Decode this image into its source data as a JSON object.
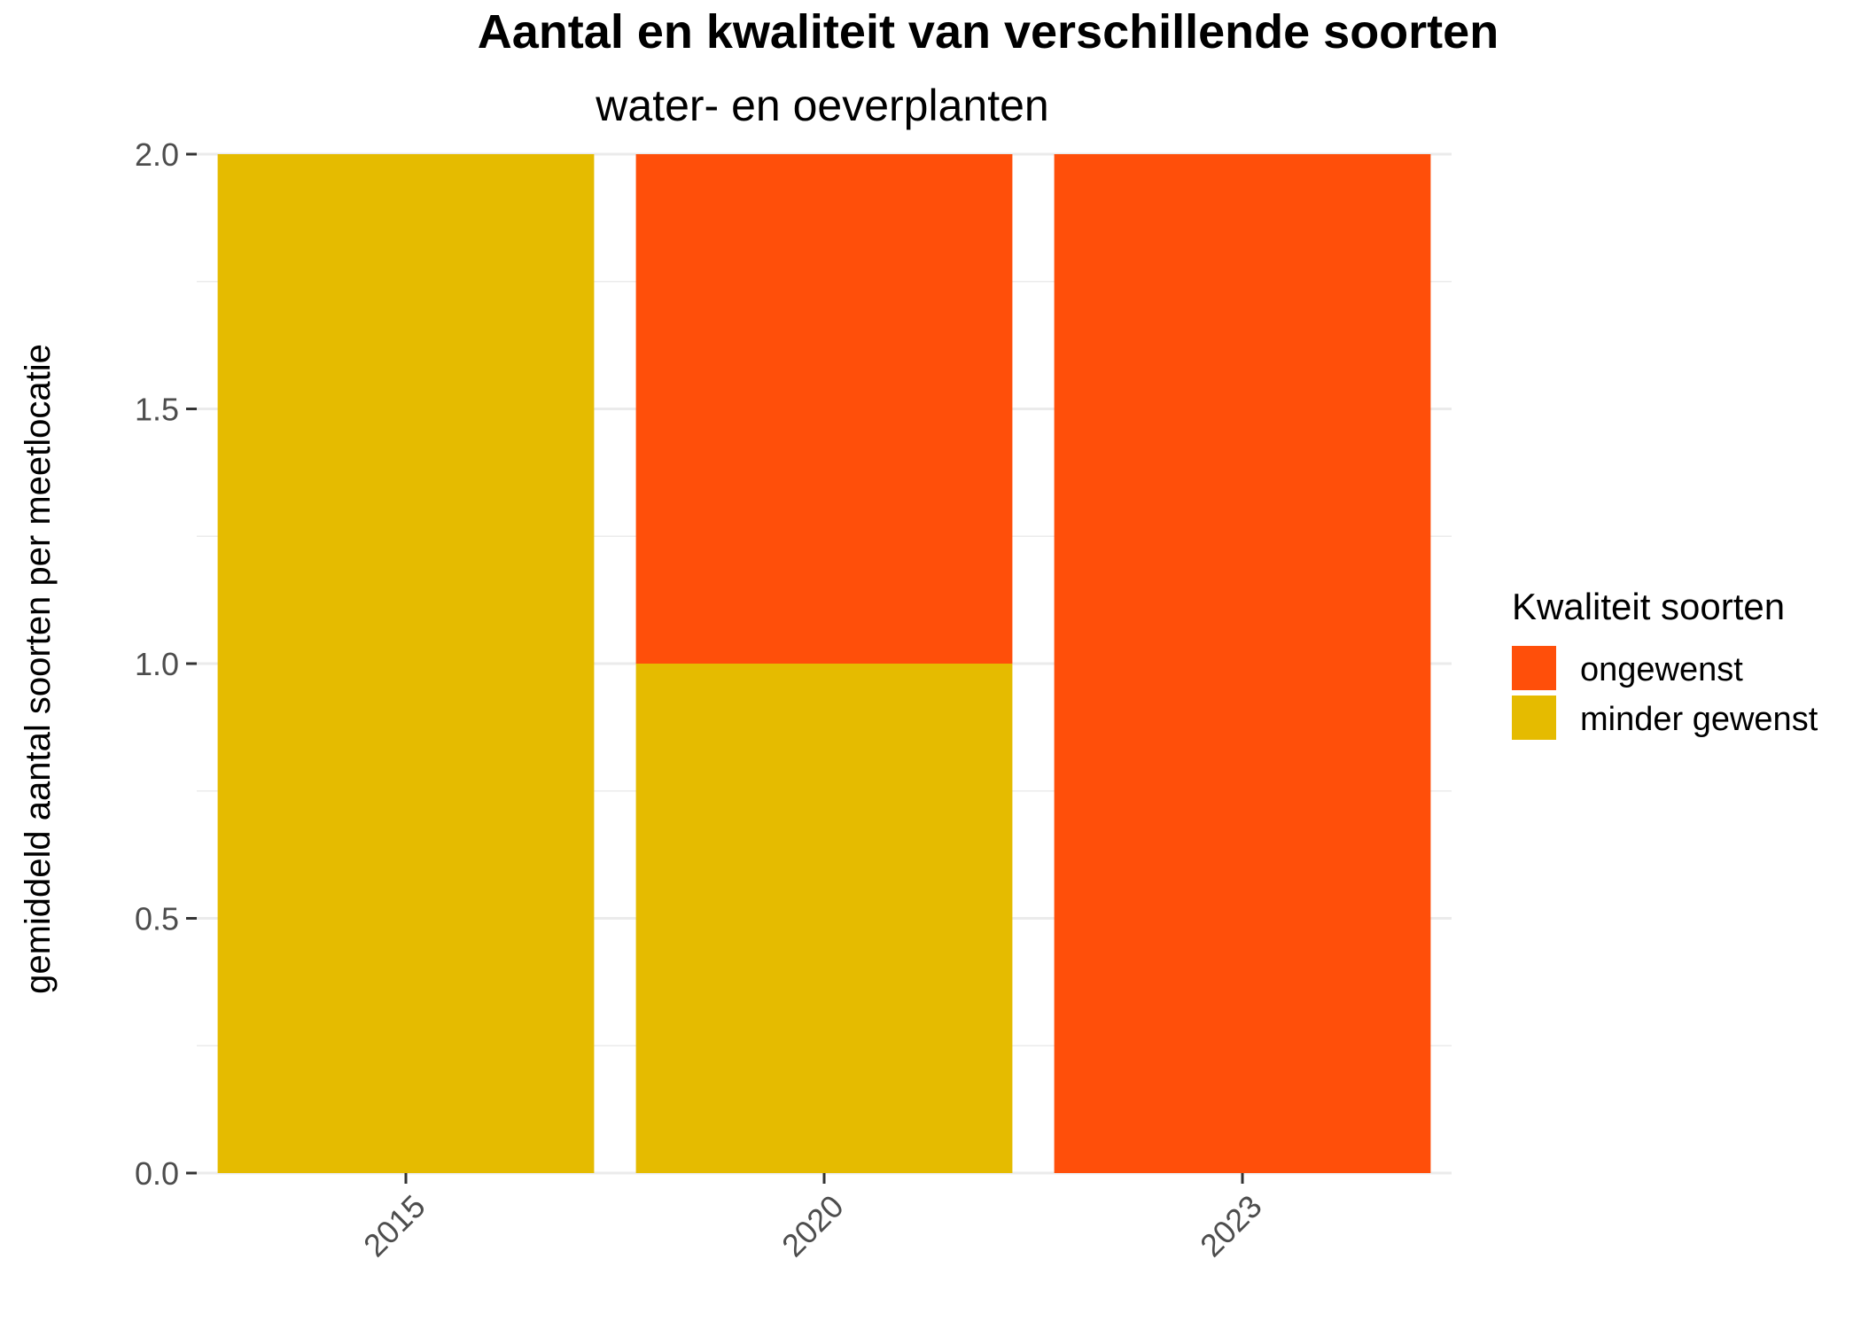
{
  "chart_data": {
    "type": "bar",
    "stacked": true,
    "title": "Aantal en kwaliteit van verschillende soorten",
    "subtitle": "water- en oeverplanten",
    "xlabel": "",
    "ylabel": "gemiddeld aantal soorten per meetlocatie",
    "categories": [
      "2015",
      "2020",
      "2023"
    ],
    "series": [
      {
        "name": "minder gewenst",
        "color": "#E5BB00",
        "values": [
          2,
          1,
          0
        ]
      },
      {
        "name": "ongewenst",
        "color": "#FF4F0A",
        "values": [
          0,
          1,
          2
        ]
      }
    ],
    "ylim": [
      0,
      2
    ],
    "yticks": [
      "0.0",
      "0.5",
      "1.0",
      "1.5",
      "2.0"
    ],
    "grid": true,
    "legend": {
      "title": "Kwaliteit soorten",
      "position": "right",
      "entries": [
        {
          "label": "ongewenst",
          "color": "#FF4F0A"
        },
        {
          "label": "minder gewenst",
          "color": "#E5BB00"
        }
      ]
    }
  }
}
